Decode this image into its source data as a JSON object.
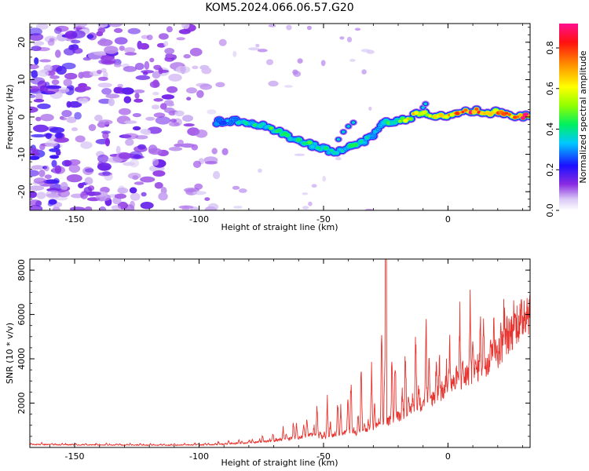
{
  "figure": {
    "title": "KOM5.2024.066.06.57.G20"
  },
  "chart_data": [
    {
      "type": "heatmap",
      "title": "KOM5.2024.066.06.57.G20",
      "xlabel": "Height of straight line (km)",
      "ylabel": "Frequency (Hz)",
      "xlim": [
        -168,
        33
      ],
      "ylim": [
        -25,
        25
      ],
      "x_ticks": [
        -150,
        -100,
        -50,
        0
      ],
      "y_ticks": [
        -20,
        -10,
        0,
        10,
        20
      ],
      "colorbar": {
        "label": "Normalized spectral amplitude",
        "range": [
          0.0,
          0.92
        ],
        "ticks": [
          0.0,
          0.2,
          0.4,
          0.6,
          0.8
        ],
        "colormap": "rainbow (white-violet-blue-cyan-green-yellow-red-magenta)"
      },
      "ridge": {
        "description": "Dominant frequency ridge (approx. Hz vs km)",
        "x": [
          -93,
          -85,
          -78,
          -70,
          -62,
          -55,
          -48,
          -44,
          -40,
          -35,
          -30,
          -25,
          -20,
          -15,
          -10,
          -5,
          0,
          5,
          10,
          15,
          20,
          25,
          30,
          33
        ],
        "y": [
          -1.5,
          -1.0,
          -1.5,
          -3.5,
          -6.0,
          -7.5,
          -9.0,
          -9.5,
          -8.0,
          -7.0,
          -4.5,
          -1.5,
          -1.0,
          0.0,
          1.5,
          0.0,
          0.5,
          1.0,
          1.5,
          1.5,
          1.0,
          0.5,
          0.0,
          0.0
        ],
        "amplitude": [
          0.3,
          0.35,
          0.4,
          0.45,
          0.4,
          0.45,
          0.4,
          0.35,
          0.4,
          0.4,
          0.35,
          0.4,
          0.5,
          0.65,
          0.6,
          0.6,
          0.7,
          0.75,
          0.85,
          0.8,
          0.75,
          0.8,
          0.9,
          0.85
        ]
      },
      "noise_region": {
        "description": "Low-amplitude scattered noise blobs",
        "x_range": [
          -168,
          -88
        ],
        "amplitude_range": [
          0.05,
          0.22
        ]
      }
    },
    {
      "type": "line",
      "xlabel": "Height of straight line (km)",
      "ylabel": "SNR (10 * v/v)",
      "xlim": [
        -168,
        33
      ],
      "ylim": [
        0,
        8500
      ],
      "x_ticks": [
        -150,
        -100,
        -50,
        0
      ],
      "y_ticks": [
        2000,
        4000,
        6000,
        8000
      ],
      "color": "#e8342f",
      "envelope": {
        "description": "Approximate SNR trend (x km, baseline and peak level)",
        "x": [
          -168,
          -140,
          -110,
          -95,
          -80,
          -70,
          -60,
          -55,
          -50,
          -45,
          -40,
          -35,
          -30,
          -25,
          -20,
          -15,
          -10,
          -5,
          0,
          5,
          10,
          15,
          20,
          25,
          30,
          33
        ],
        "baseline": [
          130,
          110,
          100,
          120,
          200,
          300,
          450,
          550,
          450,
          600,
          700,
          650,
          900,
          1100,
          1400,
          1700,
          2000,
          2300,
          2700,
          3000,
          3400,
          3800,
          4300,
          5100,
          5800,
          6100
        ],
        "peak": [
          220,
          200,
          200,
          260,
          450,
          700,
          1500,
          1900,
          2500,
          2600,
          4000,
          4200,
          4300,
          8500,
          5000,
          5300,
          6800,
          4800,
          5400,
          6300,
          7400,
          6300,
          6900,
          6400,
          6800,
          6700
        ]
      }
    }
  ]
}
